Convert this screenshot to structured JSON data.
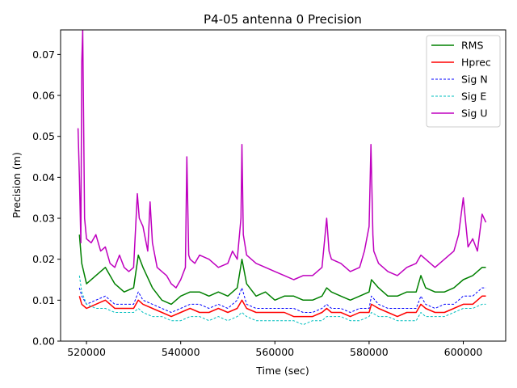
{
  "chart_data": {
    "type": "line",
    "title": "P4-05 antenna 0 Precision",
    "xlabel": "Time (sec)",
    "ylabel": "Precision (m)",
    "xlim": [
      514500,
      609000
    ],
    "ylim": [
      0,
      0.076
    ],
    "xticks": [
      520000,
      540000,
      560000,
      580000,
      600000
    ],
    "xtick_labels": [
      "520000",
      "540000",
      "560000",
      "580000",
      "600000"
    ],
    "yticks": [
      0.0,
      0.01,
      0.02,
      0.03,
      0.04,
      0.05,
      0.06,
      0.07
    ],
    "ytick_labels": [
      "0.00",
      "0.01",
      "0.02",
      "0.03",
      "0.04",
      "0.05",
      "0.06",
      "0.07"
    ],
    "grid": false,
    "legend_position": "top-right",
    "series": [
      {
        "name": "RMS",
        "color": "#008000",
        "style": "solid",
        "x": [
          518500,
          519000,
          520000,
          522000,
          524000,
          526000,
          528000,
          530000,
          531000,
          532000,
          534000,
          536000,
          538000,
          540000,
          542000,
          544000,
          546000,
          548000,
          550000,
          552000,
          553000,
          554000,
          556000,
          558000,
          560000,
          562000,
          564000,
          566000,
          568000,
          570000,
          571000,
          572000,
          574000,
          576000,
          578000,
          580000,
          580500,
          582000,
          584000,
          586000,
          588000,
          590000,
          591000,
          592000,
          594000,
          596000,
          598000,
          600000,
          602000,
          604000,
          604800
        ],
        "y": [
          0.026,
          0.019,
          0.014,
          0.016,
          0.018,
          0.014,
          0.012,
          0.013,
          0.021,
          0.018,
          0.013,
          0.01,
          0.009,
          0.011,
          0.012,
          0.012,
          0.011,
          0.012,
          0.011,
          0.013,
          0.02,
          0.014,
          0.011,
          0.012,
          0.01,
          0.011,
          0.011,
          0.01,
          0.01,
          0.011,
          0.013,
          0.012,
          0.011,
          0.01,
          0.011,
          0.012,
          0.015,
          0.013,
          0.011,
          0.011,
          0.012,
          0.012,
          0.016,
          0.013,
          0.012,
          0.012,
          0.013,
          0.015,
          0.016,
          0.018,
          0.018
        ]
      },
      {
        "name": "Hprec",
        "color": "#ff0000",
        "style": "solid",
        "x": [
          518500,
          519000,
          520000,
          522000,
          524000,
          526000,
          528000,
          530000,
          531000,
          532000,
          534000,
          536000,
          538000,
          540000,
          542000,
          544000,
          546000,
          548000,
          550000,
          552000,
          553000,
          554000,
          556000,
          558000,
          560000,
          562000,
          564000,
          566000,
          568000,
          570000,
          571000,
          572000,
          574000,
          576000,
          578000,
          580000,
          580500,
          582000,
          584000,
          586000,
          588000,
          590000,
          591000,
          592000,
          594000,
          596000,
          598000,
          600000,
          602000,
          604000,
          604800
        ],
        "y": [
          0.011,
          0.009,
          0.008,
          0.009,
          0.01,
          0.008,
          0.008,
          0.008,
          0.01,
          0.009,
          0.008,
          0.007,
          0.006,
          0.007,
          0.008,
          0.007,
          0.007,
          0.008,
          0.007,
          0.008,
          0.01,
          0.008,
          0.007,
          0.007,
          0.007,
          0.007,
          0.006,
          0.006,
          0.006,
          0.007,
          0.008,
          0.007,
          0.007,
          0.006,
          0.007,
          0.007,
          0.009,
          0.008,
          0.007,
          0.006,
          0.007,
          0.007,
          0.009,
          0.008,
          0.007,
          0.007,
          0.008,
          0.009,
          0.009,
          0.011,
          0.011
        ]
      },
      {
        "name": "Sig N",
        "color": "#0000ff",
        "style": "dashed",
        "x": [
          518500,
          519000,
          520000,
          522000,
          524000,
          526000,
          528000,
          530000,
          531000,
          532000,
          534000,
          536000,
          538000,
          540000,
          542000,
          544000,
          546000,
          548000,
          550000,
          552000,
          553000,
          554000,
          556000,
          558000,
          560000,
          562000,
          564000,
          566000,
          568000,
          570000,
          571000,
          572000,
          574000,
          576000,
          578000,
          580000,
          580500,
          582000,
          584000,
          586000,
          588000,
          590000,
          591000,
          592000,
          594000,
          596000,
          598000,
          600000,
          602000,
          604000,
          604800
        ],
        "y": [
          0.013,
          0.011,
          0.009,
          0.01,
          0.011,
          0.009,
          0.009,
          0.009,
          0.012,
          0.01,
          0.009,
          0.008,
          0.007,
          0.008,
          0.009,
          0.009,
          0.008,
          0.009,
          0.008,
          0.01,
          0.013,
          0.009,
          0.008,
          0.008,
          0.008,
          0.008,
          0.008,
          0.007,
          0.007,
          0.008,
          0.009,
          0.008,
          0.008,
          0.007,
          0.008,
          0.008,
          0.011,
          0.009,
          0.008,
          0.008,
          0.008,
          0.008,
          0.011,
          0.009,
          0.008,
          0.009,
          0.009,
          0.011,
          0.011,
          0.013,
          0.013
        ]
      },
      {
        "name": "Sig E",
        "color": "#00bfbf",
        "style": "dashed",
        "x": [
          518500,
          519000,
          520000,
          522000,
          524000,
          526000,
          528000,
          530000,
          531000,
          532000,
          534000,
          536000,
          538000,
          540000,
          542000,
          544000,
          546000,
          548000,
          550000,
          552000,
          553000,
          554000,
          556000,
          558000,
          560000,
          562000,
          564000,
          566000,
          568000,
          570000,
          571000,
          572000,
          574000,
          576000,
          578000,
          580000,
          580500,
          582000,
          584000,
          586000,
          588000,
          590000,
          591000,
          592000,
          594000,
          596000,
          598000,
          600000,
          602000,
          604000,
          604800
        ],
        "y": [
          0.016,
          0.012,
          0.009,
          0.008,
          0.008,
          0.007,
          0.007,
          0.007,
          0.008,
          0.007,
          0.006,
          0.006,
          0.005,
          0.005,
          0.006,
          0.006,
          0.005,
          0.006,
          0.005,
          0.006,
          0.007,
          0.006,
          0.005,
          0.005,
          0.005,
          0.005,
          0.005,
          0.004,
          0.005,
          0.005,
          0.006,
          0.006,
          0.006,
          0.005,
          0.005,
          0.006,
          0.007,
          0.006,
          0.006,
          0.005,
          0.005,
          0.005,
          0.007,
          0.006,
          0.006,
          0.006,
          0.007,
          0.008,
          0.008,
          0.009,
          0.009
        ]
      },
      {
        "name": "Sig U",
        "color": "#bf00bf",
        "style": "solid",
        "x": [
          518200,
          518500,
          518800,
          519000,
          519200,
          519600,
          520000,
          521000,
          522000,
          523000,
          524000,
          525000,
          526000,
          527000,
          528000,
          529000,
          530000,
          530800,
          531200,
          532000,
          533000,
          533500,
          534000,
          535000,
          536000,
          537000,
          538000,
          539000,
          540000,
          541000,
          541300,
          541700,
          542000,
          543000,
          544000,
          546000,
          548000,
          550000,
          551000,
          552000,
          552800,
          553000,
          553300,
          554000,
          556000,
          558000,
          560000,
          562000,
          564000,
          566000,
          568000,
          570000,
          571000,
          571500,
          572000,
          574000,
          576000,
          578000,
          579000,
          580000,
          580400,
          580800,
          581000,
          582000,
          584000,
          586000,
          588000,
          590000,
          591000,
          592000,
          594000,
          596000,
          598000,
          599000,
          600000,
          601000,
          602000,
          603000,
          604000,
          604800
        ],
        "y": [
          0.052,
          0.04,
          0.024,
          0.068,
          0.076,
          0.03,
          0.025,
          0.024,
          0.026,
          0.022,
          0.023,
          0.019,
          0.018,
          0.021,
          0.018,
          0.017,
          0.018,
          0.036,
          0.03,
          0.028,
          0.022,
          0.034,
          0.024,
          0.018,
          0.017,
          0.016,
          0.014,
          0.013,
          0.015,
          0.018,
          0.045,
          0.021,
          0.02,
          0.019,
          0.021,
          0.02,
          0.018,
          0.019,
          0.022,
          0.02,
          0.03,
          0.048,
          0.026,
          0.021,
          0.019,
          0.018,
          0.017,
          0.016,
          0.015,
          0.016,
          0.016,
          0.018,
          0.03,
          0.022,
          0.02,
          0.019,
          0.017,
          0.018,
          0.022,
          0.028,
          0.048,
          0.026,
          0.022,
          0.019,
          0.017,
          0.016,
          0.018,
          0.019,
          0.021,
          0.02,
          0.018,
          0.02,
          0.022,
          0.026,
          0.035,
          0.023,
          0.025,
          0.022,
          0.031,
          0.029
        ]
      }
    ]
  }
}
